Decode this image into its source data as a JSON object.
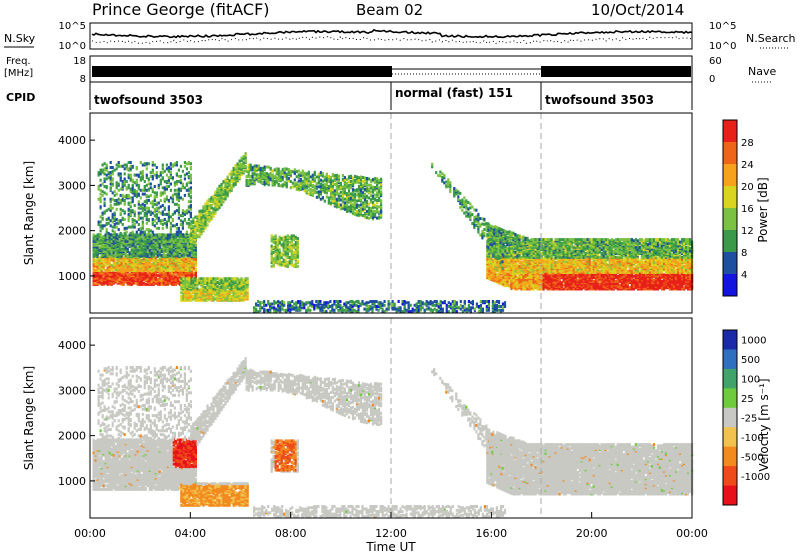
{
  "header": {
    "station": "Prince George (fitACF)",
    "beam": "Beam 02",
    "date": "10/Oct/2014"
  },
  "panels": {
    "nsky": {
      "label": "N.Sky",
      "ticks_left": [
        "10^5",
        "10^0"
      ],
      "right_label": "N.Search",
      "ticks_right": [
        "10^5",
        "10^0"
      ]
    },
    "freq": {
      "label_line1": "Freq.",
      "label_line2": "[MHz]",
      "ticks_left": [
        "18",
        "8"
      ],
      "right_label": "Nave",
      "ticks_right": [
        "60",
        "0"
      ]
    },
    "cpid": {
      "label": "CPID",
      "segments": [
        {
          "name": "twofsound 3503",
          "start_h": 0,
          "end_h": 12
        },
        {
          "name": "normal (fast) 151",
          "start_h": 12,
          "end_h": 18
        },
        {
          "name": "twofsound 3503",
          "start_h": 18,
          "end_h": 24
        }
      ]
    }
  },
  "chart_data": [
    {
      "type": "heatmap",
      "name": "power",
      "ylabel": "Slant Range [km]",
      "ylim": [
        180,
        4600
      ],
      "yticks": [
        1000,
        2000,
        3000,
        4000
      ],
      "xlim": [
        0,
        24
      ],
      "colorbar": {
        "title": "Power [dB]",
        "ticks": [
          "28",
          "24",
          "20",
          "16",
          "12",
          "8",
          "4"
        ],
        "colors": [
          "#e8201a",
          "#f06418",
          "#f7a11d",
          "#d9d41f",
          "#7cc242",
          "#3a9a4a",
          "#1f4fa0",
          "#1414e0"
        ]
      }
    },
    {
      "type": "heatmap",
      "name": "velocity",
      "ylabel": "Slant Range [km]",
      "ylim": [
        180,
        4600
      ],
      "yticks": [
        1000,
        2000,
        3000,
        4000
      ],
      "xlim": [
        0,
        24
      ],
      "xlabel": "Time UT",
      "xticks": [
        "00:00",
        "04:00",
        "08:00",
        "12:00",
        "16:00",
        "20:00",
        "00:00"
      ],
      "colorbar": {
        "title": "Velocity  [m s⁻¹]",
        "ticks": [
          "1000",
          "500",
          "100",
          "25",
          "-25",
          "-100",
          "-500",
          "-1000"
        ],
        "colors": [
          "#1a2aa8",
          "#2f6fbf",
          "#3fa36a",
          "#6dcb3c",
          "#c8c8c4",
          "#f2c24e",
          "#f28a1e",
          "#ee4a1a",
          "#e8101a"
        ]
      }
    }
  ]
}
